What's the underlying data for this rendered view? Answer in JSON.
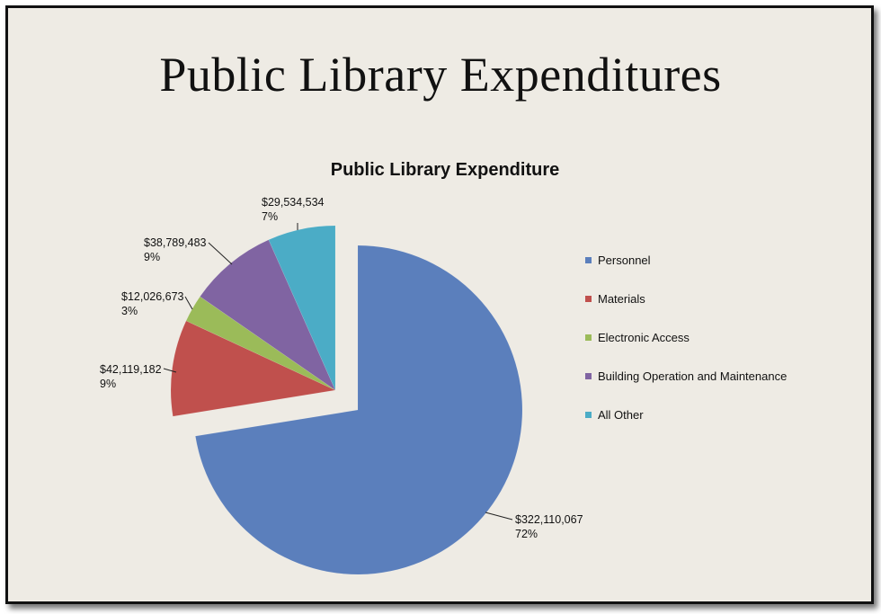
{
  "slide": {
    "title": "Public Library Expenditures"
  },
  "chart_data": {
    "type": "pie",
    "title": "Public Library Expenditure",
    "categories": [
      "Personnel",
      "Materials",
      "Electronic Access",
      "Building Operation and Maintenance",
      "All Other"
    ],
    "values": [
      322110067,
      42119182,
      12026673,
      38789483,
      29534534
    ],
    "value_labels": [
      "$322,110,067",
      "$42,119,182",
      "$12,026,673",
      "$38,789,483",
      "$29,534,534"
    ],
    "percent_labels": [
      "72%",
      "9%",
      "3%",
      "9%",
      "7%"
    ],
    "colors": [
      "#5b7fbc",
      "#c0504d",
      "#9bbb59",
      "#8064a2",
      "#4bacc6"
    ],
    "exploded": "Personnel",
    "legend_position": "right"
  }
}
